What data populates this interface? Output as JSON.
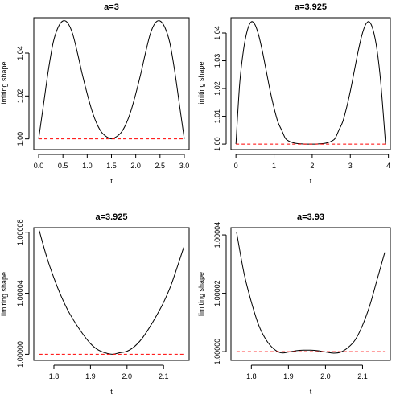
{
  "chart_data": [
    {
      "type": "line",
      "title": "a=3",
      "xlabel": "t",
      "ylabel": "limiting shape",
      "xlim": [
        -0.1,
        3.1
      ],
      "ylim": [
        0.995,
        1.0565
      ],
      "x_ticks": [
        0.0,
        0.5,
        1.0,
        1.5,
        2.0,
        2.5,
        3.0
      ],
      "x_tick_labels": [
        "0.0",
        "0.5",
        "1.0",
        "1.5",
        "2.0",
        "2.5",
        "3.0"
      ],
      "y_ticks": [
        1.0,
        1.02,
        1.04
      ],
      "y_tick_labels": [
        "1.00",
        "1.02",
        "1.04"
      ],
      "series": [
        {
          "x": [
            0.0,
            0.1,
            0.2,
            0.3,
            0.4,
            0.5,
            0.6,
            0.7,
            0.8,
            0.9,
            1.0,
            1.1,
            1.2,
            1.3,
            1.4,
            1.5,
            1.6,
            1.7,
            1.8,
            1.9,
            2.0,
            2.1,
            2.2,
            2.3,
            2.4,
            2.5,
            2.6,
            2.7,
            2.8,
            2.9,
            3.0
          ],
          "y": [
            1.0,
            1.016,
            1.032,
            1.045,
            1.052,
            1.055,
            1.054,
            1.049,
            1.04,
            1.03,
            1.021,
            1.013,
            1.007,
            1.003,
            1.001,
            1.0,
            1.001,
            1.003,
            1.007,
            1.013,
            1.021,
            1.03,
            1.04,
            1.049,
            1.054,
            1.055,
            1.052,
            1.045,
            1.032,
            1.016,
            1.0
          ],
          "color": "#000000"
        },
        {
          "x": [
            0.0,
            3.0
          ],
          "y": [
            1.0,
            1.0
          ],
          "color": "#ff0000",
          "dashed": true
        }
      ]
    },
    {
      "type": "line",
      "title": "a=3.925",
      "xlabel": "t",
      "ylabel": "limiting shape",
      "xlim": [
        -0.13,
        4.05
      ],
      "ylim": [
        0.998,
        1.0455
      ],
      "x_ticks": [
        0,
        1,
        2,
        3,
        4
      ],
      "x_tick_labels": [
        "0",
        "1",
        "2",
        "3",
        "4"
      ],
      "y_ticks": [
        1.0,
        1.01,
        1.02,
        1.03,
        1.04
      ],
      "y_tick_labels": [
        "1.00",
        "1.01",
        "1.02",
        "1.03",
        "1.04"
      ],
      "series": [
        {
          "x": [
            0.0,
            0.1,
            0.2,
            0.3,
            0.4,
            0.5,
            0.6,
            0.7,
            0.8,
            0.9,
            1.0,
            1.1,
            1.2,
            1.3,
            1.4,
            1.5,
            1.6,
            1.7,
            1.8,
            1.9,
            1.96,
            2.0,
            2.1,
            2.2,
            2.3,
            2.4,
            2.5,
            2.6,
            2.7,
            2.8,
            2.9,
            3.0,
            3.1,
            3.2,
            3.3,
            3.4,
            3.5,
            3.6,
            3.7,
            3.8,
            3.925
          ],
          "y": [
            1.0,
            1.022,
            1.034,
            1.041,
            1.044,
            1.043,
            1.039,
            1.033,
            1.026,
            1.019,
            1.013,
            1.008,
            1.005,
            1.002,
            1.001,
            1.0005,
            1.0002,
            1.0001,
            1.0,
            1.0,
            1.0,
            1.0,
            1.0,
            1.0001,
            1.0002,
            1.0005,
            1.001,
            1.002,
            1.005,
            1.008,
            1.013,
            1.019,
            1.026,
            1.033,
            1.039,
            1.043,
            1.044,
            1.041,
            1.034,
            1.022,
            1.0
          ],
          "color": "#000000"
        },
        {
          "x": [
            0.0,
            3.925
          ],
          "y": [
            1.0,
            1.0
          ],
          "color": "#ff0000",
          "dashed": true
        }
      ]
    },
    {
      "type": "line",
      "title": "a=3.925",
      "xlabel": "t",
      "ylabel": "limiting shape",
      "xlim": [
        1.745,
        2.17
      ],
      "ylim": [
        0.999996,
        1.000083
      ],
      "x_ticks": [
        1.8,
        1.9,
        2.0,
        2.1
      ],
      "x_tick_labels": [
        "1.8",
        "1.9",
        "2.0",
        "2.1"
      ],
      "y_ticks": [
        1.0,
        1.00004,
        1.00008
      ],
      "y_tick_labels": [
        "1.00000",
        "1.00004",
        "1.00008"
      ],
      "series": [
        {
          "x": [
            1.76,
            1.78,
            1.8,
            1.82,
            1.84,
            1.86,
            1.88,
            1.9,
            1.92,
            1.94,
            1.96,
            1.98,
            2.0,
            2.02,
            2.04,
            2.06,
            2.08,
            2.1,
            2.12,
            2.14,
            2.155
          ],
          "y": [
            1.000081,
            1.000064,
            1.00005,
            1.000038,
            1.000028,
            1.00002,
            1.000013,
            1.000007,
            1.000003,
            1.000001,
            1.0,
            1.000001,
            1.000002,
            1.000005,
            1.00001,
            1.000017,
            1.000025,
            1.000034,
            1.000045,
            1.000059,
            1.00007
          ],
          "color": "#000000"
        },
        {
          "x": [
            1.76,
            2.155
          ],
          "y": [
            1.0,
            1.0
          ],
          "color": "#ff0000",
          "dashed": true
        }
      ]
    },
    {
      "type": "line",
      "title": "a=3.93",
      "xlabel": "t",
      "ylabel": "limiting shape",
      "xlim": [
        1.745,
        2.175
      ],
      "ylim": [
        0.999997,
        1.0000425
      ],
      "x_ticks": [
        1.8,
        1.9,
        2.0,
        2.1
      ],
      "x_tick_labels": [
        "1.8",
        "1.9",
        "2.0",
        "2.1"
      ],
      "y_ticks": [
        1.0,
        1.00002,
        1.00004
      ],
      "y_tick_labels": [
        "1.00000",
        "1.00002",
        "1.00004"
      ],
      "series": [
        {
          "x": [
            1.76,
            1.78,
            1.8,
            1.82,
            1.84,
            1.86,
            1.88,
            1.9,
            1.92,
            1.94,
            1.96,
            1.98,
            2.0,
            2.02,
            2.04,
            2.06,
            2.08,
            2.1,
            2.12,
            2.14,
            2.16
          ],
          "y": [
            1.000041,
            1.000027,
            1.000017,
            1.000009,
            1.000004,
            1.000001,
            0.9999996,
            0.99999985,
            1.0000003,
            1.0000005,
            1.0000005,
            1.0000003,
            0.9999999,
            0.9999995,
            0.9999998,
            1.0000013,
            1.000004,
            1.000009,
            1.000016,
            1.000025,
            1.000034
          ],
          "color": "#000000"
        },
        {
          "x": [
            1.76,
            2.16
          ],
          "y": [
            1.0,
            1.0
          ],
          "color": "#ff0000",
          "dashed": true
        }
      ]
    }
  ]
}
